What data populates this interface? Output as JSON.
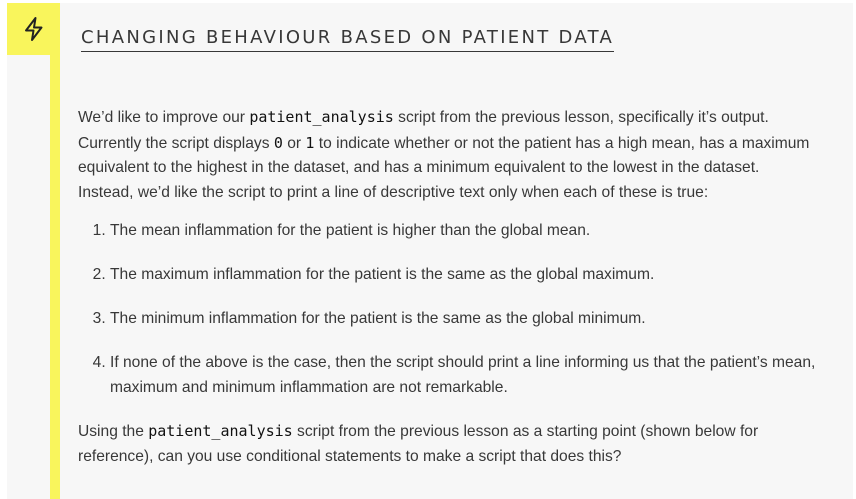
{
  "callout": {
    "icon": "lightning-bolt-icon",
    "accent_color": "#f9f55c",
    "title": "CHANGING BEHAVIOUR BASED ON PATIENT DATA"
  },
  "intro": {
    "text_before_code": "We’d like to improve our ",
    "code": "patient_analysis",
    "text_after_code": " script from the previous lesson, specifically it’s output. Currently the script displays ",
    "code_zero": "0",
    "text_or": " or ",
    "code_one": "1",
    "text_end": " to indicate whether or not the patient has a high mean, has a maximum equivalent to the highest in the dataset, and has a minimum equivalent to the lowest in the dataset. Instead, we’d like the script to print a line of descriptive text only when each of these is true:"
  },
  "items": [
    "The mean inflammation for the patient is higher than the global mean.",
    "The maximum inflammation for the patient is the same as the global maximum.",
    "The minimum inflammation for the patient is the same as the global minimum.",
    "If none of the above is the case, then the script should print a line informing us that the patient’s mean, maximum and minimum inflammation are not remarkable."
  ],
  "closing": {
    "text_before_code": "Using the ",
    "code": "patient_analysis",
    "text_after_code": " script from the previous lesson as a starting point (shown below for reference), can you use conditional statements to make a script that does this?"
  }
}
